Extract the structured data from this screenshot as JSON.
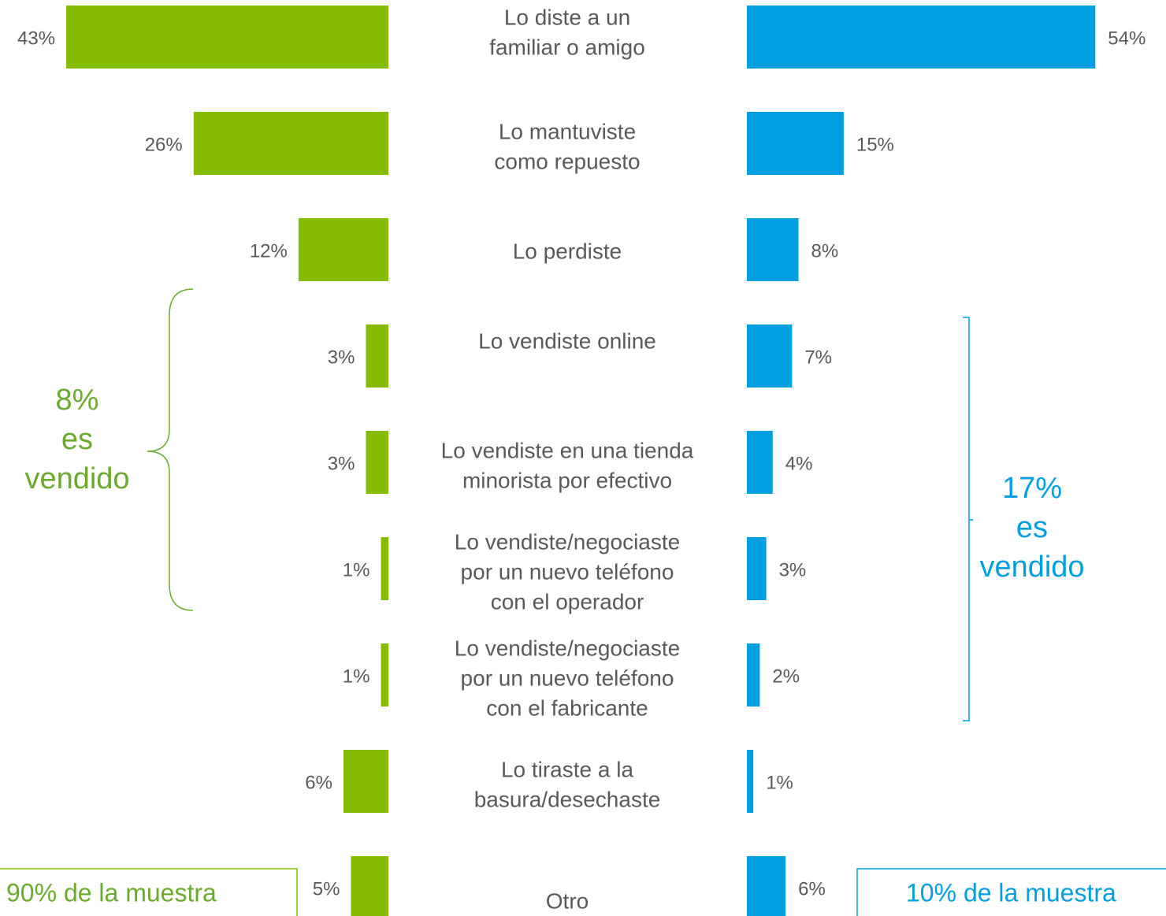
{
  "chart_data": {
    "type": "butterfly-bar",
    "categories": [
      [
        "Lo diste a un",
        "familiar o amigo"
      ],
      [
        "Lo mantuviste",
        "como repuesto"
      ],
      [
        "Lo perdiste"
      ],
      [
        "Lo vendiste online"
      ],
      [
        "Lo vendiste en una tienda",
        "minorista por efectivo"
      ],
      [
        "Lo vendiste/negociaste",
        "por un nuevo teléfono",
        "con el operador"
      ],
      [
        "Lo vendiste/negociaste",
        "por un nuevo teléfono",
        "con el fabricante"
      ],
      [
        "Lo tiraste a la",
        "basura/desechaste"
      ],
      [
        "Otro"
      ]
    ],
    "series": [
      {
        "color": "#84bd00",
        "values": [
          43,
          26,
          12,
          3,
          3,
          1,
          1,
          6,
          5
        ],
        "value_labels": [
          "43%",
          "26%",
          "12%",
          "3%",
          "3%",
          "1%",
          "1%",
          "6%",
          "5%"
        ],
        "sample_label": "90% de la muestra",
        "bracket_label": [
          "8%",
          "es",
          "vendido"
        ]
      },
      {
        "color": "#009fdf",
        "values": [
          54,
          15,
          8,
          7,
          4,
          3,
          2,
          1,
          6
        ],
        "value_labels": [
          "54%",
          "15%",
          "8%",
          "7%",
          "4%",
          "3%",
          "2%",
          "1%",
          "6%"
        ],
        "sample_label": "10% de la muestra",
        "bracket_label": [
          "17%",
          "es",
          "vendido"
        ]
      }
    ]
  }
}
